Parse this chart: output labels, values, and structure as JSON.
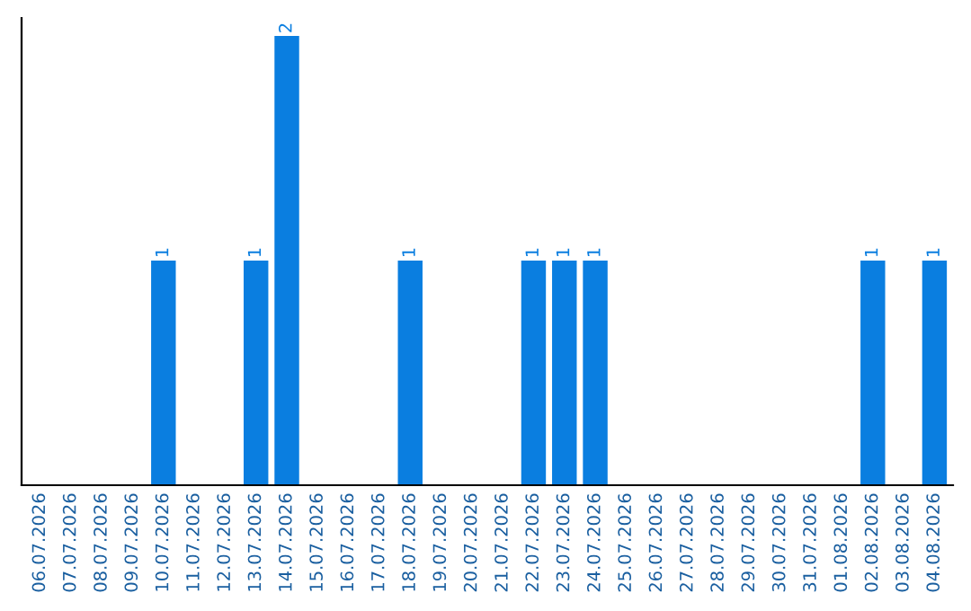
{
  "chart_data": {
    "type": "bar",
    "categories": [
      "06.07.2026",
      "07.07.2026",
      "08.07.2026",
      "09.07.2026",
      "10.07.2026",
      "11.07.2026",
      "12.07.2026",
      "13.07.2026",
      "14.07.2026",
      "15.07.2026",
      "16.07.2026",
      "17.07.2026",
      "18.07.2026",
      "19.07.2026",
      "20.07.2026",
      "21.07.2026",
      "22.07.2026",
      "23.07.2026",
      "24.07.2026",
      "25.07.2026",
      "26.07.2026",
      "27.07.2026",
      "28.07.2026",
      "29.07.2026",
      "30.07.2026",
      "31.07.2026",
      "01.08.2026",
      "02.08.2026",
      "03.08.2026",
      "04.08.2026"
    ],
    "values": [
      0,
      0,
      0,
      0,
      1,
      0,
      0,
      1,
      2,
      0,
      0,
      0,
      1,
      0,
      0,
      0,
      1,
      1,
      1,
      0,
      0,
      0,
      0,
      0,
      0,
      0,
      0,
      1,
      0,
      1
    ],
    "value_labels": [
      null,
      null,
      null,
      null,
      "1",
      null,
      null,
      "1",
      "2",
      null,
      null,
      null,
      "1",
      null,
      null,
      null,
      "1",
      "1",
      "1",
      null,
      null,
      null,
      null,
      null,
      null,
      null,
      null,
      "1",
      null,
      "1"
    ],
    "color": "#0a7ee0",
    "tick_labels": "x",
    "grid": false
  }
}
